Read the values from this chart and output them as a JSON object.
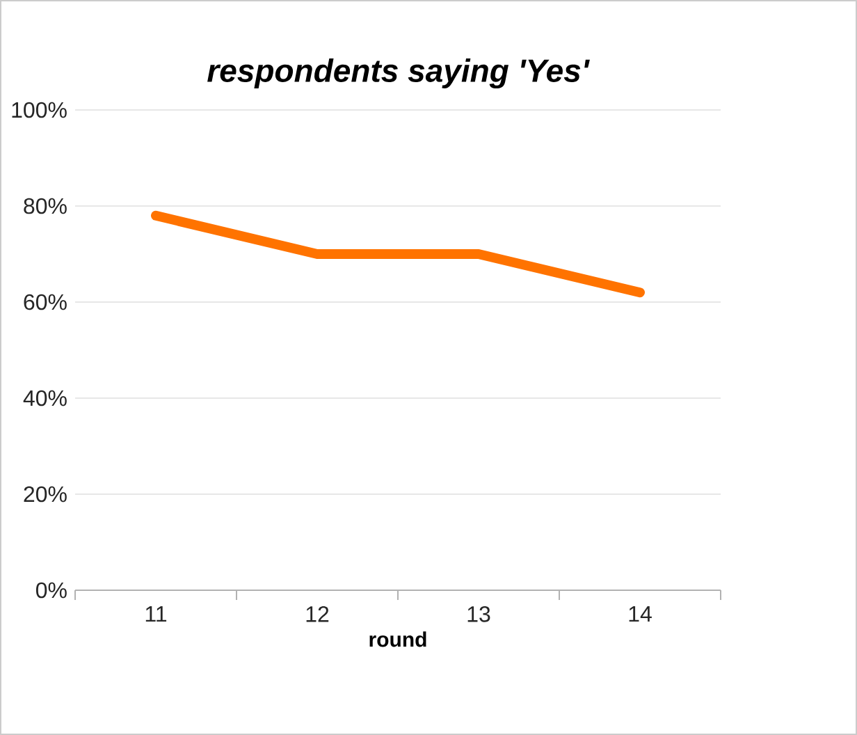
{
  "chart_data": {
    "type": "line",
    "title": "respondents saying 'Yes'",
    "xlabel": "round",
    "categories": [
      "11",
      "12",
      "13",
      "14"
    ],
    "series": [
      {
        "color": "#ff7300",
        "values": [
          78,
          70,
          70,
          62
        ]
      }
    ],
    "ylim": [
      0,
      100
    ],
    "yticks": [
      {
        "value": 0,
        "label": "0%"
      },
      {
        "value": 20,
        "label": "20%"
      },
      {
        "value": 40,
        "label": "40%"
      },
      {
        "value": 60,
        "label": "60%"
      },
      {
        "value": 80,
        "label": "80%"
      },
      {
        "value": 100,
        "label": "100%"
      }
    ],
    "grid": "y",
    "marker": "none",
    "line_style": "solid"
  }
}
